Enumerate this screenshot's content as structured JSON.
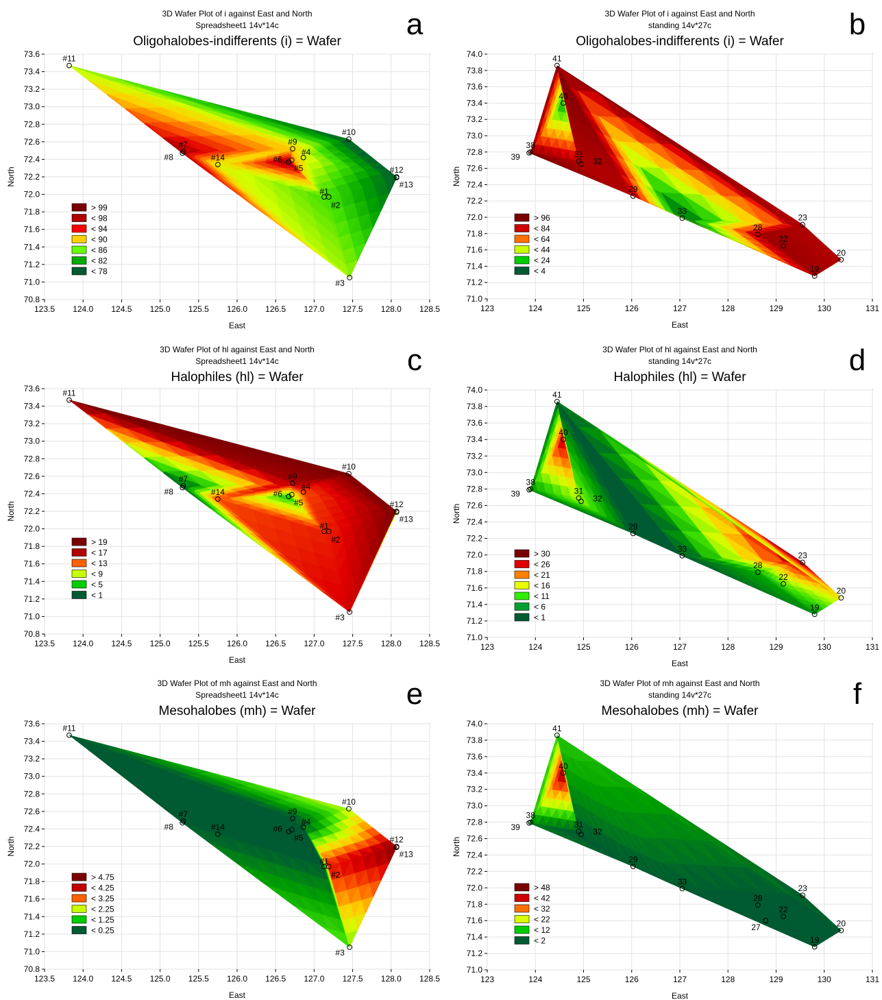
{
  "chart_data": [
    {
      "type": "heatmap",
      "panel_letter": "a",
      "title": "3D Wafer Plot of i against East and North",
      "subtitle": "Spreadsheet1 14v*14c",
      "main_title": "Oligohalobes-indifferents (i) = Wafer",
      "xlabel": "East",
      "ylabel": "North",
      "xlim": [
        123.5,
        128.5
      ],
      "ylim": [
        70.8,
        73.6
      ],
      "xticks": [
        "123.5",
        "124.0",
        "124.5",
        "125.0",
        "125.5",
        "126.0",
        "126.5",
        "127.0",
        "127.5",
        "128.0",
        "128.5"
      ],
      "yticks": [
        "70.8",
        "71.0",
        "71.2",
        "71.4",
        "71.6",
        "71.8",
        "72.0",
        "72.2",
        "72.4",
        "72.6",
        "72.8",
        "73.0",
        "73.2",
        "73.4",
        "73.6"
      ],
      "legend": [
        {
          "label": "> 99",
          "color": "#7a0000"
        },
        {
          "label": "< 98",
          "color": "#b00000"
        },
        {
          "label": "< 94",
          "color": "#ff0000"
        },
        {
          "label": "< 90",
          "color": "#ffd000"
        },
        {
          "label": "< 86",
          "color": "#66ff00"
        },
        {
          "label": "< 82",
          "color": "#00aa00"
        },
        {
          "label": "< 78",
          "color": "#005a32"
        }
      ],
      "points": [
        {
          "label": "#11",
          "x": 123.82,
          "y": 73.47,
          "value": 86
        },
        {
          "label": "#10",
          "x": 127.45,
          "y": 72.63,
          "value": 78
        },
        {
          "label": "#12",
          "x": 128.07,
          "y": 72.2,
          "value": 78
        },
        {
          "label": "#13",
          "x": 128.07,
          "y": 72.19,
          "value": 78
        },
        {
          "label": "#7",
          "x": 125.3,
          "y": 72.49,
          "value": 98
        },
        {
          "label": "#8",
          "x": 125.29,
          "y": 72.47,
          "value": 98
        },
        {
          "label": "#14",
          "x": 125.75,
          "y": 72.34,
          "value": 88
        },
        {
          "label": "#9",
          "x": 126.72,
          "y": 72.52,
          "value": 90
        },
        {
          "label": "#4",
          "x": 126.86,
          "y": 72.42,
          "value": 88
        },
        {
          "label": "#6",
          "x": 126.67,
          "y": 72.37,
          "value": 99
        },
        {
          "label": "#5",
          "x": 126.71,
          "y": 72.39,
          "value": 92
        },
        {
          "label": "#1",
          "x": 127.13,
          "y": 71.97,
          "value": 84
        },
        {
          "label": "#2",
          "x": 127.19,
          "y": 71.97,
          "value": 84
        },
        {
          "label": "#3",
          "x": 127.46,
          "y": 71.05,
          "value": 86
        }
      ]
    },
    {
      "type": "heatmap",
      "panel_letter": "b",
      "title": "3D Wafer Plot of i against East and North",
      "subtitle": "standing 14v*27c",
      "main_title": "Oligohalobes-indifferents (i) = Wafer",
      "xlabel": "East",
      "ylabel": "North",
      "xlim": [
        123,
        131
      ],
      "ylim": [
        71.0,
        74.0
      ],
      "xticks": [
        "123",
        "124",
        "125",
        "126",
        "127",
        "128",
        "129",
        "130",
        "131"
      ],
      "yticks": [
        "71.0",
        "71.2",
        "71.4",
        "71.6",
        "71.8",
        "72.0",
        "72.2",
        "72.4",
        "72.6",
        "72.8",
        "73.0",
        "73.2",
        "73.4",
        "73.6",
        "73.8",
        "74.0"
      ],
      "legend": [
        {
          "label": "> 96",
          "color": "#7a0000"
        },
        {
          "label": "< 84",
          "color": "#d00000"
        },
        {
          "label": "< 64",
          "color": "#ff7000"
        },
        {
          "label": "< 44",
          "color": "#c8ff00"
        },
        {
          "label": "< 24",
          "color": "#00cc00"
        },
        {
          "label": "< 4",
          "color": "#005a32"
        }
      ],
      "points": [
        {
          "label": "41",
          "x": 124.45,
          "y": 73.86,
          "value": 96
        },
        {
          "label": "40",
          "x": 124.58,
          "y": 73.4,
          "value": 30
        },
        {
          "label": "38",
          "x": 123.9,
          "y": 72.8,
          "value": 96
        },
        {
          "label": "39",
          "x": 123.87,
          "y": 72.79,
          "value": 96
        },
        {
          "label": "31",
          "x": 124.9,
          "y": 72.69,
          "value": 90
        },
        {
          "label": "32",
          "x": 124.95,
          "y": 72.65,
          "value": 90
        },
        {
          "label": "29",
          "x": 126.03,
          "y": 72.26,
          "value": 90
        },
        {
          "label": "33",
          "x": 127.05,
          "y": 71.99,
          "value": 20
        },
        {
          "label": "28",
          "x": 128.62,
          "y": 71.79,
          "value": 92
        },
        {
          "label": "22",
          "x": 129.15,
          "y": 71.65,
          "value": 92
        },
        {
          "label": "23",
          "x": 129.55,
          "y": 71.91,
          "value": 90
        },
        {
          "label": "20",
          "x": 130.35,
          "y": 71.48,
          "value": 90
        },
        {
          "label": "19",
          "x": 129.8,
          "y": 71.28,
          "value": 92
        }
      ]
    },
    {
      "type": "heatmap",
      "panel_letter": "c",
      "title": "3D Wafer Plot of hl against East and North",
      "subtitle": "Spreadsheet1 14v*14c",
      "main_title": "Halophiles (hl) = Wafer",
      "xlabel": "East",
      "ylabel": "North",
      "xlim": [
        123.5,
        128.5
      ],
      "ylim": [
        70.8,
        73.6
      ],
      "xticks": [
        "123.5",
        "124.0",
        "124.5",
        "125.0",
        "125.5",
        "126.0",
        "126.5",
        "127.0",
        "127.5",
        "128.0",
        "128.5"
      ],
      "yticks": [
        "70.8",
        "71.0",
        "71.2",
        "71.4",
        "71.6",
        "71.8",
        "72.0",
        "72.2",
        "72.4",
        "72.6",
        "72.8",
        "73.0",
        "73.2",
        "73.4",
        "73.6"
      ],
      "legend": [
        {
          "label": "> 19",
          "color": "#7a0000"
        },
        {
          "label": "< 17",
          "color": "#b00000"
        },
        {
          "label": "< 13",
          "color": "#ff6000"
        },
        {
          "label": "< 9",
          "color": "#c8ff00"
        },
        {
          "label": "< 5",
          "color": "#00cc00"
        },
        {
          "label": "< 1",
          "color": "#005a32"
        }
      ],
      "points": [
        {
          "label": "#11",
          "x": 123.82,
          "y": 73.47,
          "value": 19
        },
        {
          "label": "#10",
          "x": 127.45,
          "y": 72.63,
          "value": 19
        },
        {
          "label": "#12",
          "x": 128.07,
          "y": 72.2,
          "value": 19
        },
        {
          "label": "#13",
          "x": 128.07,
          "y": 72.19,
          "value": 9
        },
        {
          "label": "#7",
          "x": 125.3,
          "y": 72.49,
          "value": 3
        },
        {
          "label": "#8",
          "x": 125.29,
          "y": 72.47,
          "value": 3
        },
        {
          "label": "#14",
          "x": 125.75,
          "y": 72.34,
          "value": 15
        },
        {
          "label": "#9",
          "x": 126.72,
          "y": 72.52,
          "value": 18
        },
        {
          "label": "#4",
          "x": 126.86,
          "y": 72.42,
          "value": 15
        },
        {
          "label": "#6",
          "x": 126.67,
          "y": 72.37,
          "value": 6
        },
        {
          "label": "#5",
          "x": 126.71,
          "y": 72.39,
          "value": 10
        },
        {
          "label": "#1",
          "x": 127.13,
          "y": 71.97,
          "value": 16
        },
        {
          "label": "#2",
          "x": 127.19,
          "y": 71.97,
          "value": 16
        },
        {
          "label": "#3",
          "x": 127.46,
          "y": 71.05,
          "value": 17
        }
      ]
    },
    {
      "type": "heatmap",
      "panel_letter": "d",
      "title": "3D Wafer Plot of hl against East and North",
      "subtitle": "standing 14v*27c",
      "main_title": "Halophiles (hl) = Wafer",
      "xlabel": "East",
      "ylabel": "North",
      "xlim": [
        123,
        131
      ],
      "ylim": [
        71.0,
        74.0
      ],
      "xticks": [
        "123",
        "124",
        "125",
        "126",
        "127",
        "128",
        "129",
        "130",
        "131"
      ],
      "yticks": [
        "71.0",
        "71.2",
        "71.4",
        "71.6",
        "71.8",
        "72.0",
        "72.2",
        "72.4",
        "72.6",
        "72.8",
        "73.0",
        "73.2",
        "73.4",
        "73.6",
        "73.8",
        "74.0"
      ],
      "legend": [
        {
          "label": "> 30",
          "color": "#7a0000"
        },
        {
          "label": "< 26",
          "color": "#e00000"
        },
        {
          "label": "< 21",
          "color": "#ff8000"
        },
        {
          "label": "< 16",
          "color": "#e8ff00"
        },
        {
          "label": "< 11",
          "color": "#30ee00"
        },
        {
          "label": "< 6",
          "color": "#00a030"
        },
        {
          "label": "< 1",
          "color": "#005a32"
        }
      ],
      "points": [
        {
          "label": "41",
          "x": 124.45,
          "y": 73.86,
          "value": 1
        },
        {
          "label": "40",
          "x": 124.58,
          "y": 73.4,
          "value": 28
        },
        {
          "label": "38",
          "x": 123.9,
          "y": 72.8,
          "value": 4
        },
        {
          "label": "39",
          "x": 123.87,
          "y": 72.79,
          "value": 4
        },
        {
          "label": "31",
          "x": 124.9,
          "y": 72.69,
          "value": 12
        },
        {
          "label": "32",
          "x": 124.95,
          "y": 72.65,
          "value": 12
        },
        {
          "label": "29",
          "x": 126.03,
          "y": 72.26,
          "value": 1
        },
        {
          "label": "33",
          "x": 127.05,
          "y": 71.99,
          "value": 1
        },
        {
          "label": "28",
          "x": 128.62,
          "y": 71.79,
          "value": 6
        },
        {
          "label": "22",
          "x": 129.15,
          "y": 71.65,
          "value": 10
        },
        {
          "label": "23",
          "x": 129.55,
          "y": 71.91,
          "value": 30
        },
        {
          "label": "20",
          "x": 130.35,
          "y": 71.48,
          "value": 16
        },
        {
          "label": "19",
          "x": 129.8,
          "y": 71.28,
          "value": 4
        }
      ]
    },
    {
      "type": "heatmap",
      "panel_letter": "e",
      "title": "3D Wafer Plot of mh against East and North",
      "subtitle": "Spreadsheet1 14v*14c",
      "main_title": "Mesohalobes (mh) = Wafer",
      "xlabel": "East",
      "ylabel": "North",
      "xlim": [
        123.5,
        128.5
      ],
      "ylim": [
        70.8,
        73.6
      ],
      "xticks": [
        "123.5",
        "124.0",
        "124.5",
        "125.0",
        "125.5",
        "126.0",
        "126.5",
        "127.0",
        "127.5",
        "128.0",
        "128.5"
      ],
      "yticks": [
        "70.8",
        "71.0",
        "71.2",
        "71.4",
        "71.6",
        "71.8",
        "72.0",
        "72.2",
        "72.4",
        "72.6",
        "72.8",
        "73.0",
        "73.2",
        "73.4",
        "73.6"
      ],
      "legend": [
        {
          "label": "> 4.75",
          "color": "#7a0000"
        },
        {
          "label": "< 4.25",
          "color": "#c00000"
        },
        {
          "label": "< 3.25",
          "color": "#ff6000"
        },
        {
          "label": "< 2.25",
          "color": "#c8ff00"
        },
        {
          "label": "< 1.25",
          "color": "#00cc00"
        },
        {
          "label": "< 0.25",
          "color": "#005a32"
        }
      ],
      "points": [
        {
          "label": "#11",
          "x": 123.82,
          "y": 73.47,
          "value": 0
        },
        {
          "label": "#10",
          "x": 127.45,
          "y": 72.63,
          "value": 2
        },
        {
          "label": "#12",
          "x": 128.07,
          "y": 72.2,
          "value": 4.75
        },
        {
          "label": "#13",
          "x": 128.07,
          "y": 72.19,
          "value": 4.75
        },
        {
          "label": "#7",
          "x": 125.3,
          "y": 72.49,
          "value": 0
        },
        {
          "label": "#8",
          "x": 125.29,
          "y": 72.47,
          "value": 0
        },
        {
          "label": "#14",
          "x": 125.75,
          "y": 72.34,
          "value": 0
        },
        {
          "label": "#9",
          "x": 126.72,
          "y": 72.52,
          "value": 0
        },
        {
          "label": "#4",
          "x": 126.86,
          "y": 72.42,
          "value": 0
        },
        {
          "label": "#6",
          "x": 126.67,
          "y": 72.37,
          "value": 0
        },
        {
          "label": "#5",
          "x": 126.71,
          "y": 72.39,
          "value": 0
        },
        {
          "label": "#1",
          "x": 127.13,
          "y": 71.97,
          "value": 0
        },
        {
          "label": "#2",
          "x": 127.19,
          "y": 71.97,
          "value": 4
        },
        {
          "label": "#3",
          "x": 127.46,
          "y": 71.05,
          "value": 1.5
        }
      ]
    },
    {
      "type": "heatmap",
      "panel_letter": "f",
      "title": "3D Wafer Plot of mh against East and North",
      "subtitle": "standing 14v*27c",
      "main_title": "Mesohalobes (mh) = Wafer",
      "xlabel": "East",
      "ylabel": "North",
      "xlim": [
        123,
        131
      ],
      "ylim": [
        71.0,
        74.0
      ],
      "xticks": [
        "123",
        "124",
        "125",
        "126",
        "127",
        "128",
        "129",
        "130",
        "131"
      ],
      "yticks": [
        "71.0",
        "71.2",
        "71.4",
        "71.6",
        "71.8",
        "72.0",
        "72.2",
        "72.4",
        "72.6",
        "72.8",
        "73.0",
        "73.2",
        "73.4",
        "73.6",
        "73.8",
        "74.0"
      ],
      "legend": [
        {
          "label": "> 48",
          "color": "#7a0000"
        },
        {
          "label": "< 42",
          "color": "#d00000"
        },
        {
          "label": "< 32",
          "color": "#ff7000"
        },
        {
          "label": "< 22",
          "color": "#d8ff00"
        },
        {
          "label": "< 12",
          "color": "#00cc00"
        },
        {
          "label": "< 2",
          "color": "#005a32"
        }
      ],
      "points": [
        {
          "label": "41",
          "x": 124.45,
          "y": 73.86,
          "value": 12
        },
        {
          "label": "40",
          "x": 124.58,
          "y": 73.4,
          "value": 48
        },
        {
          "label": "38",
          "x": 123.9,
          "y": 72.8,
          "value": 8
        },
        {
          "label": "39",
          "x": 123.87,
          "y": 72.79,
          "value": 4
        },
        {
          "label": "31",
          "x": 124.9,
          "y": 72.69,
          "value": 1
        },
        {
          "label": "32",
          "x": 124.95,
          "y": 72.65,
          "value": 1
        },
        {
          "label": "29",
          "x": 126.03,
          "y": 72.26,
          "value": 1
        },
        {
          "label": "33",
          "x": 127.05,
          "y": 71.99,
          "value": 1
        },
        {
          "label": "28",
          "x": 128.62,
          "y": 71.79,
          "value": 1
        },
        {
          "label": "22",
          "x": 129.15,
          "y": 71.65,
          "value": 1
        },
        {
          "label": "23",
          "x": 129.55,
          "y": 71.91,
          "value": 1
        },
        {
          "label": "20",
          "x": 130.35,
          "y": 71.48,
          "value": 1
        },
        {
          "label": "19",
          "x": 129.8,
          "y": 71.28,
          "value": 1
        },
        {
          "label": "27",
          "x": 128.78,
          "y": 71.6,
          "value": 1
        }
      ]
    }
  ]
}
